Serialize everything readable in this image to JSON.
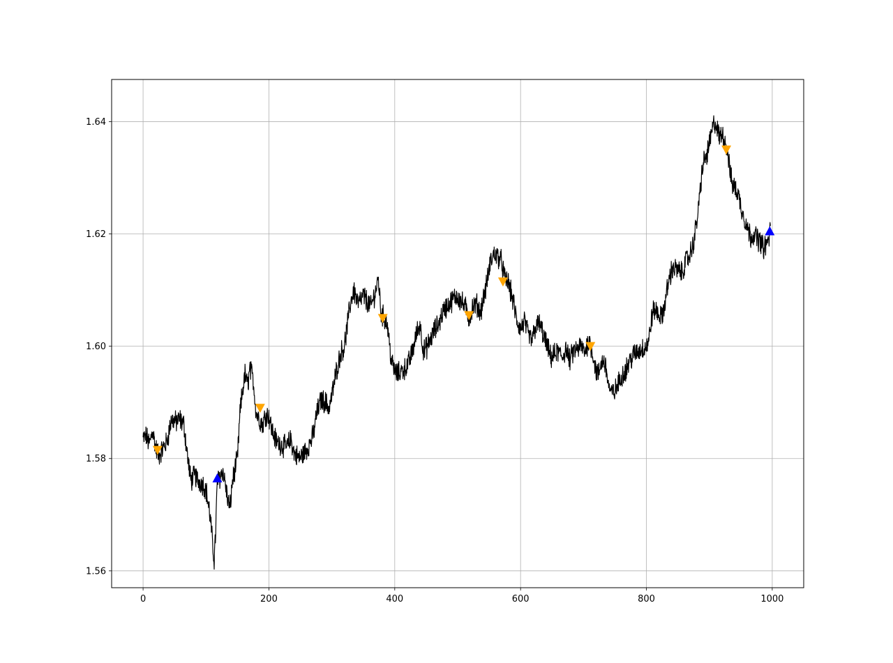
{
  "chart_data": {
    "type": "line",
    "title": "",
    "xlabel": "",
    "ylabel": "",
    "xlim": [
      -50,
      1050
    ],
    "ylim": [
      1.557,
      1.6475
    ],
    "x_ticks": [
      0,
      200,
      400,
      600,
      800,
      1000
    ],
    "x_tick_labels": [
      "0",
      "200",
      "400",
      "600",
      "800",
      "1000"
    ],
    "y_ticks": [
      1.56,
      1.58,
      1.6,
      1.62,
      1.64
    ],
    "y_tick_labels": [
      "1.56",
      "1.58",
      "1.60",
      "1.62",
      "1.64"
    ],
    "grid": true,
    "legend": "none",
    "line_color": "#000000",
    "price_anchors": [
      [
        0,
        1.5835
      ],
      [
        5,
        1.584
      ],
      [
        10,
        1.5825
      ],
      [
        15,
        1.585
      ],
      [
        20,
        1.582
      ],
      [
        25,
        1.5805
      ],
      [
        30,
        1.5815
      ],
      [
        38,
        1.583
      ],
      [
        45,
        1.587
      ],
      [
        52,
        1.5865
      ],
      [
        58,
        1.587
      ],
      [
        65,
        1.586
      ],
      [
        70,
        1.581
      ],
      [
        76,
        1.576
      ],
      [
        82,
        1.577
      ],
      [
        88,
        1.576
      ],
      [
        95,
        1.5755
      ],
      [
        100,
        1.5745
      ],
      [
        105,
        1.571
      ],
      [
        108,
        1.568
      ],
      [
        111,
        1.564
      ],
      [
        113,
        1.562
      ],
      [
        115,
        1.566
      ],
      [
        118,
        1.576
      ],
      [
        122,
        1.5765
      ],
      [
        126,
        1.578
      ],
      [
        130,
        1.576
      ],
      [
        134,
        1.573
      ],
      [
        138,
        1.571
      ],
      [
        142,
        1.576
      ],
      [
        146,
        1.578
      ],
      [
        150,
        1.58
      ],
      [
        154,
        1.588
      ],
      [
        158,
        1.592
      ],
      [
        162,
        1.595
      ],
      [
        166,
        1.593
      ],
      [
        170,
        1.596
      ],
      [
        175,
        1.594
      ],
      [
        180,
        1.588
      ],
      [
        185,
        1.587
      ],
      [
        190,
        1.586
      ],
      [
        195,
        1.588
      ],
      [
        200,
        1.5875
      ],
      [
        205,
        1.585
      ],
      [
        212,
        1.583
      ],
      [
        220,
        1.5825
      ],
      [
        228,
        1.582
      ],
      [
        235,
        1.5835
      ],
      [
        240,
        1.581
      ],
      [
        248,
        1.58
      ],
      [
        256,
        1.581
      ],
      [
        262,
        1.582
      ],
      [
        270,
        1.584
      ],
      [
        276,
        1.588
      ],
      [
        283,
        1.5905
      ],
      [
        290,
        1.59
      ],
      [
        296,
        1.589
      ],
      [
        303,
        1.593
      ],
      [
        308,
        1.596
      ],
      [
        315,
        1.599
      ],
      [
        320,
        1.6
      ],
      [
        325,
        1.604
      ],
      [
        330,
        1.608
      ],
      [
        335,
        1.61
      ],
      [
        342,
        1.6075
      ],
      [
        350,
        1.609
      ],
      [
        356,
        1.608
      ],
      [
        362,
        1.607
      ],
      [
        370,
        1.61
      ],
      [
        374,
        1.612
      ],
      [
        378,
        1.606
      ],
      [
        383,
        1.605
      ],
      [
        388,
        1.604
      ],
      [
        394,
        1.598
      ],
      [
        398,
        1.596
      ],
      [
        404,
        1.595
      ],
      [
        410,
        1.5955
      ],
      [
        416,
        1.596
      ],
      [
        422,
        1.597
      ],
      [
        428,
        1.599
      ],
      [
        434,
        1.602
      ],
      [
        440,
        1.604
      ],
      [
        446,
        1.599
      ],
      [
        452,
        1.6
      ],
      [
        458,
        1.6015
      ],
      [
        464,
        1.603
      ],
      [
        470,
        1.604
      ],
      [
        476,
        1.606
      ],
      [
        482,
        1.607
      ],
      [
        490,
        1.608
      ],
      [
        498,
        1.609
      ],
      [
        505,
        1.608
      ],
      [
        512,
        1.607
      ],
      [
        518,
        1.605
      ],
      [
        524,
        1.607
      ],
      [
        530,
        1.6075
      ],
      [
        536,
        1.606
      ],
      [
        540,
        1.608
      ],
      [
        546,
        1.611
      ],
      [
        552,
        1.615
      ],
      [
        558,
        1.6165
      ],
      [
        564,
        1.616
      ],
      [
        570,
        1.615
      ],
      [
        575,
        1.612
      ],
      [
        580,
        1.6115
      ],
      [
        586,
        1.609
      ],
      [
        590,
        1.607
      ],
      [
        594,
        1.6045
      ],
      [
        600,
        1.603
      ],
      [
        606,
        1.6045
      ],
      [
        612,
        1.602
      ],
      [
        618,
        1.601
      ],
      [
        624,
        1.6035
      ],
      [
        630,
        1.604
      ],
      [
        636,
        1.602
      ],
      [
        642,
        1.6
      ],
      [
        648,
        1.598
      ],
      [
        654,
        1.5985
      ],
      [
        660,
        1.599
      ],
      [
        666,
        1.598
      ],
      [
        672,
        1.5995
      ],
      [
        678,
        1.5975
      ],
      [
        684,
        1.599
      ],
      [
        690,
        1.5995
      ],
      [
        696,
        1.6
      ],
      [
        702,
        1.599
      ],
      [
        708,
        1.601
      ],
      [
        712,
        1.6
      ],
      [
        716,
        1.598
      ],
      [
        720,
        1.5955
      ],
      [
        724,
        1.595
      ],
      [
        728,
        1.597
      ],
      [
        732,
        1.5975
      ],
      [
        736,
        1.596
      ],
      [
        740,
        1.593
      ],
      [
        744,
        1.5915
      ],
      [
        750,
        1.592
      ],
      [
        756,
        1.5935
      ],
      [
        762,
        1.595
      ],
      [
        768,
        1.596
      ],
      [
        774,
        1.5975
      ],
      [
        780,
        1.5985
      ],
      [
        786,
        1.599
      ],
      [
        792,
        1.5995
      ],
      [
        800,
        1.6
      ],
      [
        804,
        1.601
      ],
      [
        808,
        1.605
      ],
      [
        812,
        1.6065
      ],
      [
        818,
        1.606
      ],
      [
        824,
        1.605
      ],
      [
        830,
        1.608
      ],
      [
        836,
        1.612
      ],
      [
        842,
        1.614
      ],
      [
        850,
        1.6135
      ],
      [
        856,
        1.613
      ],
      [
        862,
        1.615
      ],
      [
        868,
        1.616
      ],
      [
        874,
        1.618
      ],
      [
        880,
        1.622
      ],
      [
        885,
        1.627
      ],
      [
        888,
        1.631
      ],
      [
        892,
        1.633
      ],
      [
        896,
        1.634
      ],
      [
        900,
        1.636
      ],
      [
        904,
        1.638
      ],
      [
        908,
        1.64
      ],
      [
        912,
        1.639
      ],
      [
        916,
        1.637
      ],
      [
        920,
        1.638
      ],
      [
        925,
        1.6365
      ],
      [
        930,
        1.634
      ],
      [
        934,
        1.63
      ],
      [
        938,
        1.6285
      ],
      [
        942,
        1.628
      ],
      [
        946,
        1.627
      ],
      [
        950,
        1.625
      ],
      [
        954,
        1.6235
      ],
      [
        958,
        1.622
      ],
      [
        962,
        1.6205
      ],
      [
        966,
        1.6195
      ],
      [
        970,
        1.62
      ],
      [
        974,
        1.6195
      ],
      [
        978,
        1.619
      ],
      [
        982,
        1.6185
      ],
      [
        986,
        1.6175
      ],
      [
        990,
        1.618
      ],
      [
        994,
        1.619
      ],
      [
        996,
        1.62
      ],
      [
        997,
        1.6205
      ]
    ],
    "sell_markers": {
      "color": "#ffa500",
      "marker": "triangle-down",
      "points": [
        [
          23,
          1.5815
        ],
        [
          186,
          1.589
        ],
        [
          381,
          1.605
        ],
        [
          518,
          1.6055
        ],
        [
          572,
          1.6115
        ],
        [
          711,
          1.6
        ],
        [
          927,
          1.635
        ]
      ]
    },
    "buy_markers": {
      "color": "#0000ff",
      "marker": "triangle-up",
      "points": [
        [
          118,
          1.5765
        ],
        [
          996,
          1.6205
        ]
      ]
    }
  }
}
